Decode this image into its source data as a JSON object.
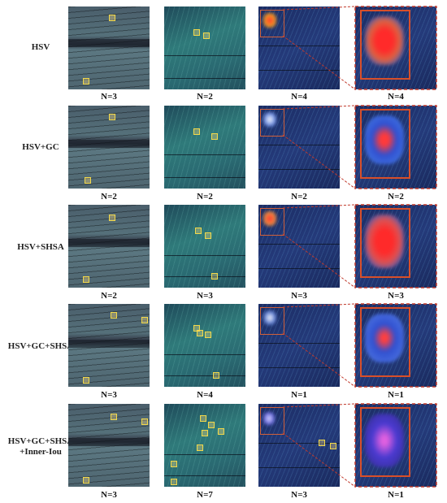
{
  "rows": [
    {
      "label_lines": [
        "HSV"
      ],
      "counts": [
        "N=3",
        "N=2",
        "N=4",
        "N=4"
      ]
    },
    {
      "label_lines": [
        "HSV+GC"
      ],
      "counts": [
        "N=2",
        "N=2",
        "N=2",
        "N=2"
      ]
    },
    {
      "label_lines": [
        "HSV+SHSA"
      ],
      "counts": [
        "N=2",
        "N=3",
        "N=3",
        "N=3"
      ]
    },
    {
      "label_lines": [
        "HSV+GC+SHSA"
      ],
      "counts": [
        "N=3",
        "N=4",
        "N=1",
        "N=1"
      ]
    },
    {
      "label_lines": [
        "HSV+GC+SHSA",
        "+Inner-Iou"
      ],
      "counts": [
        "N=3",
        "N=7",
        "N=3",
        "N=1"
      ]
    }
  ],
  "colors": {
    "detection_box": "#f2d84a",
    "zoom_box": "#d84f2a",
    "guide_line": "#c0392b"
  }
}
